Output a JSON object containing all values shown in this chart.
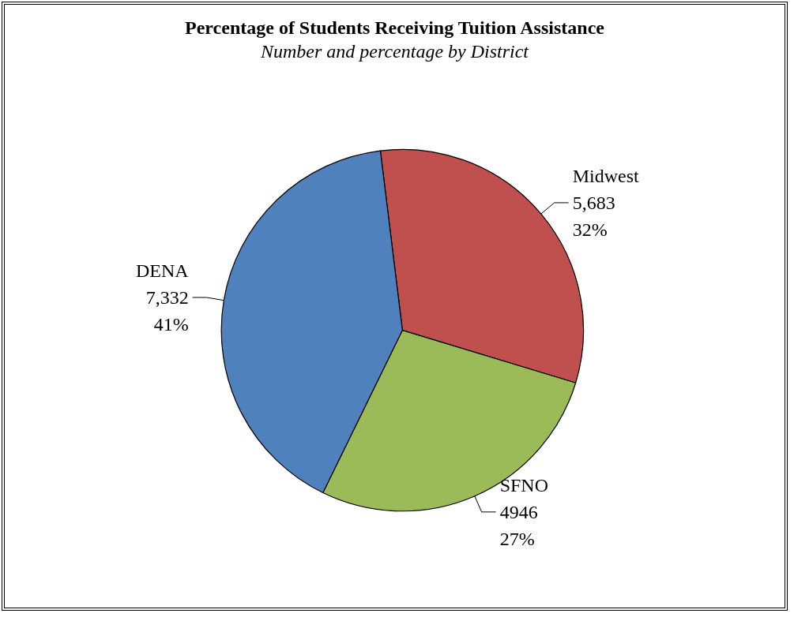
{
  "chart_data": {
    "type": "pie",
    "title": "Percentage of Students Receiving Tuition Assistance",
    "subtitle": "Number and percentage by District",
    "categories": [
      "Midwest",
      "SFNO",
      "DENA"
    ],
    "values": [
      5683,
      4946,
      7332
    ],
    "value_labels": [
      "5,683\n32%",
      "4946\n27%",
      "7,332\n41%"
    ],
    "colors": [
      "#c0504d",
      "#9bbb59",
      "#4f81bd"
    ],
    "legend": false
  }
}
